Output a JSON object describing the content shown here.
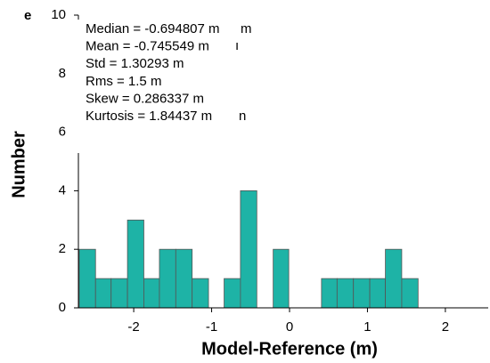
{
  "chart_data": {
    "type": "histogram",
    "panel_label": "e",
    "x_label": "Model-Reference (m)",
    "y_label": "Number",
    "stats": [
      "Median = -0.694807 m",
      "Mean = -0.745549 m",
      "Std = 1.30293 m",
      "Rms = 1.5 m",
      "Skew = 0.286337 m",
      "Kurtosis = 1.84437 m"
    ],
    "stats_fragments": [
      "m",
      "ı",
      "n"
    ],
    "bins": [
      -2.7,
      -2.49,
      -2.29,
      -2.08,
      -1.87,
      -1.67,
      -1.46,
      -1.25,
      -1.04,
      -0.84,
      -0.63,
      -0.42,
      -0.21,
      -0.01,
      0.2,
      0.41,
      0.61,
      0.82,
      1.03,
      1.23,
      1.44,
      1.65
    ],
    "values": [
      2,
      1,
      1,
      3,
      1,
      2,
      2,
      1,
      0,
      1,
      4,
      0,
      2,
      0,
      0,
      1,
      1,
      1,
      1,
      2,
      1
    ],
    "color": "#1eb3a6",
    "xlim": [
      -2.71,
      2.55
    ],
    "ylim": [
      0,
      10
    ],
    "xticks": [
      -2,
      -1,
      0,
      1,
      2
    ],
    "yticks": [
      0,
      2,
      4,
      6,
      8,
      10
    ]
  }
}
